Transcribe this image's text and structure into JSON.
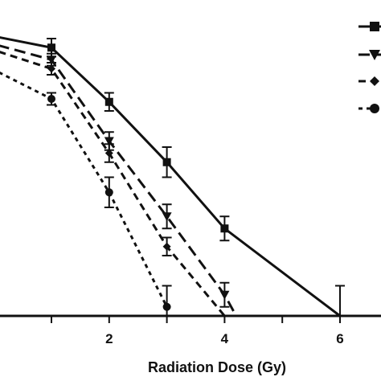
{
  "chart_data": {
    "type": "line",
    "title": "",
    "xlabel": "Radiation Dose (Gy)",
    "ylabel": "",
    "xlim": [
      -1.9,
      6.8
    ],
    "ylim": [
      0,
      1
    ],
    "x_ticks": [
      1,
      2,
      3,
      4,
      5,
      6
    ],
    "x_tick_labels": [
      "2",
      "4",
      "6"
    ],
    "grid": false,
    "legend_position": "top-right",
    "series": [
      {
        "marker": "square",
        "dash": "solid",
        "x": [
          -1.9,
          1,
          2,
          3,
          4,
          6
        ],
        "y": [
          1.0,
          0.89,
          0.71,
          0.51,
          0.29,
          0.0
        ],
        "err": [
          0,
          0.03,
          0.03,
          0.05,
          0.04,
          0.1
        ]
      },
      {
        "marker": "triangle-down",
        "dash": "long",
        "x": [
          -1.9,
          1,
          2,
          3,
          4,
          4.2
        ],
        "y": [
          1.0,
          0.85,
          0.58,
          0.33,
          0.07,
          0.0
        ],
        "err": [
          0,
          0.02,
          0.03,
          0.04,
          0.04,
          0
        ]
      },
      {
        "marker": "diamond",
        "dash": "medium",
        "x": [
          -1.9,
          1,
          2,
          3,
          4
        ],
        "y": [
          1.0,
          0.82,
          0.54,
          0.23,
          0.0
        ],
        "err": [
          0,
          0.02,
          0.03,
          0.03,
          0
        ]
      },
      {
        "marker": "circle",
        "dash": "short",
        "x": [
          -1.9,
          1,
          2,
          3
        ],
        "y": [
          1.0,
          0.72,
          0.41,
          0.03
        ],
        "err": [
          0,
          0.02,
          0.05,
          0.07
        ]
      }
    ]
  },
  "colors": {
    "line": "#111111",
    "background": "#ffffff"
  }
}
